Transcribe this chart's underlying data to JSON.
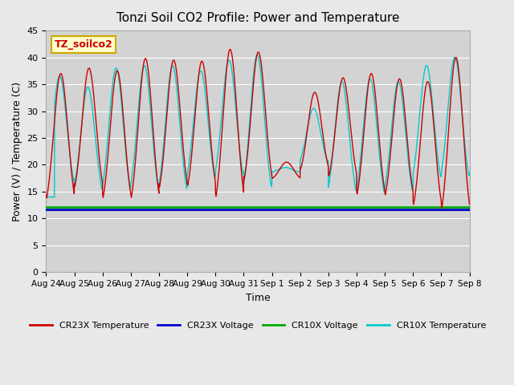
{
  "title": "Tonzi Soil CO2 Profile: Power and Temperature",
  "xlabel": "Time",
  "ylabel": "Power (V) / Temperature (C)",
  "ylim": [
    0,
    45
  ],
  "yticks": [
    0,
    5,
    10,
    15,
    20,
    25,
    30,
    35,
    40,
    45
  ],
  "background_color": "#e8e8e8",
  "plot_bg_color": "#d3d3d3",
  "grid_color": "#ffffff",
  "annotation_text": "TZ_soilco2",
  "annotation_bg": "#ffffcc",
  "annotation_border": "#ccaa00",
  "cr23x_temp_color": "#cc0000",
  "cr23x_volt_color": "#0000cc",
  "cr10x_volt_color": "#00aa00",
  "cr10x_temp_color": "#00cccc",
  "cr23x_volt_value": 11.6,
  "cr10x_volt_value": 12.05,
  "x_tick_labels": [
    "Aug 24",
    "Aug 25",
    "Aug 26",
    "Aug 27",
    "Aug 28",
    "Aug 29",
    "Aug 30",
    "Aug 31",
    "Sep 1",
    "Sep 2",
    "Sep 3",
    "Sep 4",
    "Sep 5",
    "Sep 6",
    "Sep 7",
    "Sep 8"
  ],
  "legend_entries": [
    "CR23X Temperature",
    "CR23X Voltage",
    "CR10X Voltage",
    "CR10X Temperature"
  ],
  "legend_colors": [
    "#cc0000",
    "#0000cc",
    "#00aa00",
    "#00cccc"
  ],
  "cr23x_peak_per_day": [
    37.0,
    38.0,
    37.5,
    39.8,
    39.5,
    39.3,
    41.5,
    41.0,
    20.5,
    33.5,
    36.2,
    37.0,
    36.0,
    35.5,
    40.0
  ],
  "cr23x_trough_per_day": [
    10.2,
    12.5,
    10.2,
    9.8,
    12.2,
    12.5,
    9.8,
    13.5,
    17.0,
    17.0,
    15.0,
    11.0,
    11.0,
    9.0,
    7.5
  ],
  "cr10x_peak_per_day": [
    36.5,
    34.5,
    38.0,
    38.5,
    38.5,
    37.5,
    39.5,
    40.5,
    19.5,
    30.5,
    35.5,
    36.0,
    35.5,
    38.5,
    40.0
  ],
  "cr10x_trough_per_day": [
    14.0,
    12.5,
    12.0,
    12.0,
    12.0,
    14.5,
    15.0,
    12.0,
    18.5,
    19.0,
    12.0,
    11.5,
    12.0,
    14.5,
    14.5
  ]
}
